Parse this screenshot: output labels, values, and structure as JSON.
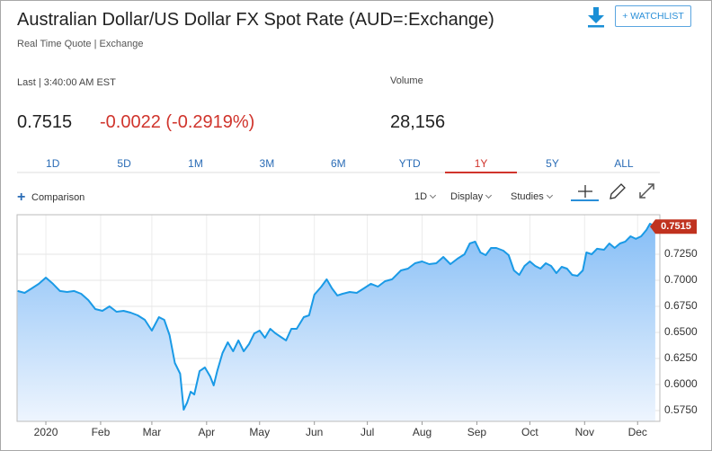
{
  "header": {
    "title": "Australian Dollar/US Dollar FX Spot Rate (AUD=:Exchange)",
    "subtitle": "Real Time Quote | Exchange",
    "watchlist": "+ WATCHLIST"
  },
  "quote": {
    "last_label": "Last | 3:40:00 AM EST",
    "price": "0.7515",
    "change": "-0.0022 (-0.2919%)",
    "volume_label": "Volume",
    "volume": "28,156"
  },
  "tabs": [
    "1D",
    "5D",
    "1M",
    "3M",
    "6M",
    "YTD",
    "1Y",
    "5Y",
    "ALL"
  ],
  "active_tab": 6,
  "toolbar": {
    "comparison": "Comparison",
    "interval": "1D",
    "display": "Display",
    "studies": "Studies"
  },
  "chart_data": {
    "type": "area",
    "color": "#1a9ae6",
    "grid": true,
    "x": [
      -16,
      -12,
      -8,
      -4,
      0,
      4,
      8,
      12,
      16,
      20,
      24,
      28,
      32,
      36,
      40,
      44,
      48,
      52,
      56,
      60,
      64,
      67,
      70,
      73,
      76,
      78,
      80,
      82,
      84,
      87,
      90,
      93,
      95,
      97,
      100,
      103,
      106,
      109,
      112,
      115,
      118,
      121,
      124,
      127,
      130,
      133,
      136,
      139,
      142,
      146,
      149,
      152,
      156,
      159,
      162,
      165,
      168,
      172,
      176,
      180,
      184,
      188,
      192,
      196,
      201,
      205,
      209,
      213,
      217,
      221,
      225,
      229,
      233,
      237,
      240,
      243,
      246,
      249,
      252,
      255,
      259,
      262,
      265,
      268,
      271,
      274,
      277,
      280,
      283,
      286,
      289,
      292,
      295,
      298,
      301,
      304,
      306,
      309,
      312,
      316,
      319,
      322,
      325,
      328,
      331,
      334,
      337,
      340,
      342,
      345
    ],
    "values": [
      0.6897,
      0.6879,
      0.6922,
      0.6966,
      0.7026,
      0.6966,
      0.6897,
      0.6888,
      0.6897,
      0.6871,
      0.681,
      0.6724,
      0.6707,
      0.675,
      0.6698,
      0.6707,
      0.669,
      0.6664,
      0.6621,
      0.6517,
      0.6647,
      0.6621,
      0.6474,
      0.6207,
      0.6104,
      0.5759,
      0.5828,
      0.5931,
      0.5905,
      0.6129,
      0.6164,
      0.6078,
      0.5992,
      0.6129,
      0.6302,
      0.6405,
      0.6319,
      0.6423,
      0.6319,
      0.6388,
      0.6491,
      0.6517,
      0.6448,
      0.6535,
      0.6491,
      0.6457,
      0.6423,
      0.6535,
      0.6535,
      0.6647,
      0.6664,
      0.6862,
      0.694,
      0.7009,
      0.6922,
      0.6854,
      0.6871,
      0.6888,
      0.6879,
      0.6922,
      0.6966,
      0.694,
      0.6991,
      0.7009,
      0.7095,
      0.7112,
      0.7164,
      0.7181,
      0.7155,
      0.7164,
      0.7224,
      0.7155,
      0.7207,
      0.725,
      0.7353,
      0.7371,
      0.7267,
      0.7241,
      0.731,
      0.731,
      0.7284,
      0.7241,
      0.7095,
      0.7052,
      0.7138,
      0.7181,
      0.7138,
      0.7112,
      0.7164,
      0.7138,
      0.7069,
      0.7129,
      0.7112,
      0.7052,
      0.7043,
      0.7095,
      0.7267,
      0.725,
      0.7302,
      0.7293,
      0.7353,
      0.731,
      0.7353,
      0.7371,
      0.7422,
      0.7397,
      0.7422,
      0.7483,
      0.7543,
      0.7515
    ],
    "xlim": [
      -16.3,
      347.6
    ],
    "ylim": [
      0.5647,
      0.7629
    ],
    "xticks": [
      {
        "value": 0,
        "label": "2020"
      },
      {
        "value": 31,
        "label": "Feb"
      },
      {
        "value": 60,
        "label": "Mar"
      },
      {
        "value": 91,
        "label": "Apr"
      },
      {
        "value": 121,
        "label": "May"
      },
      {
        "value": 152,
        "label": "Jun"
      },
      {
        "value": 182,
        "label": "Jul"
      },
      {
        "value": 213,
        "label": "Aug"
      },
      {
        "value": 244,
        "label": "Sep"
      },
      {
        "value": 274,
        "label": "Oct"
      },
      {
        "value": 305,
        "label": "Nov"
      },
      {
        "value": 335,
        "label": "Dec"
      }
    ],
    "yticks": [
      {
        "value": 0.725,
        "label": "0.7250"
      },
      {
        "value": 0.7,
        "label": "0.7000"
      },
      {
        "value": 0.675,
        "label": "0.6750"
      },
      {
        "value": 0.65,
        "label": "0.6500"
      },
      {
        "value": 0.625,
        "label": "0.6250"
      },
      {
        "value": 0.6,
        "label": "0.6000"
      },
      {
        "value": 0.575,
        "label": "0.5750"
      }
    ]
  }
}
